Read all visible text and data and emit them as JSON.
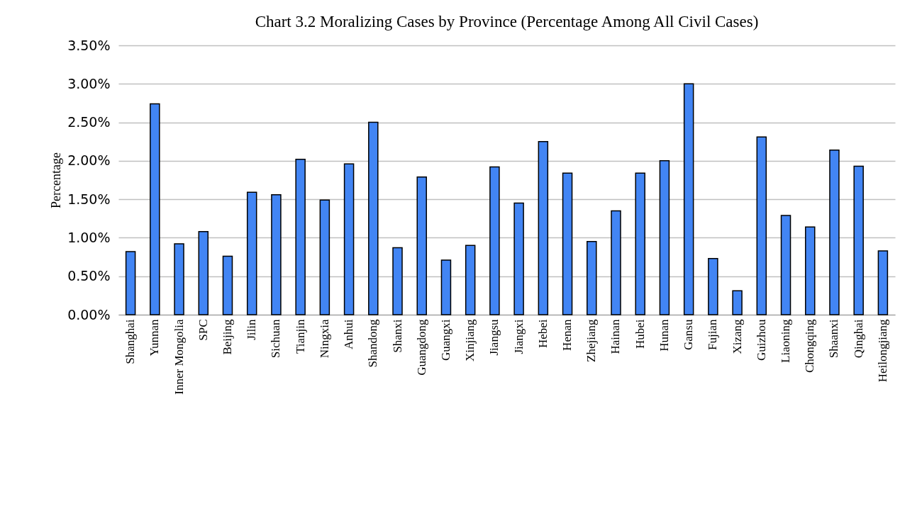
{
  "chart_data": {
    "type": "bar",
    "title": "Chart 3.2 Moralizing Cases by Province (Percentage Among All Civil Cases)",
    "ylabel": "Percentage",
    "categories": [
      "Shanghai",
      "Yunnan",
      "Inner Mongolia",
      "SPC",
      "Beijing",
      "Jilin",
      "Sichuan",
      "Tianjin",
      "Ningxia",
      "Anhui",
      "Shandong",
      "Shanxi",
      "Guangdong",
      "Guangxi",
      "Xinjiang",
      "Jiangsu",
      "Jiangxi",
      "Hebei",
      "Henan",
      "Zhejiang",
      "Hainan",
      "Hubei",
      "Hunan",
      "Gansu",
      "Fujian",
      "Xizang",
      "Guizhou",
      "Liaoning",
      "Chongqing",
      "Shaanxi",
      "Qinghai",
      "Heilongjiang"
    ],
    "values": [
      0.82,
      2.74,
      0.92,
      1.08,
      0.76,
      1.59,
      1.56,
      2.02,
      1.49,
      1.96,
      2.5,
      0.87,
      1.79,
      0.71,
      0.9,
      1.92,
      1.45,
      2.25,
      1.84,
      0.95,
      1.35,
      1.84,
      2.0,
      3.0,
      0.73,
      0.31,
      2.31,
      1.29,
      1.14,
      2.14,
      1.93,
      0.83
    ],
    "color": "#4285f4",
    "ylim": [
      0,
      3.5
    ],
    "yticks": [
      {
        "value": 0,
        "label": "0.00%"
      },
      {
        "value": 0.5,
        "label": "0.50%"
      },
      {
        "value": 1,
        "label": "1.00%"
      },
      {
        "value": 1.5,
        "label": "1.50%"
      },
      {
        "value": 2,
        "label": "2.00%"
      },
      {
        "value": 2.5,
        "label": "2.50%"
      },
      {
        "value": 3,
        "label": "3.00%"
      },
      {
        "value": 3.5,
        "label": "3.50%"
      }
    ],
    "grid": "y"
  }
}
